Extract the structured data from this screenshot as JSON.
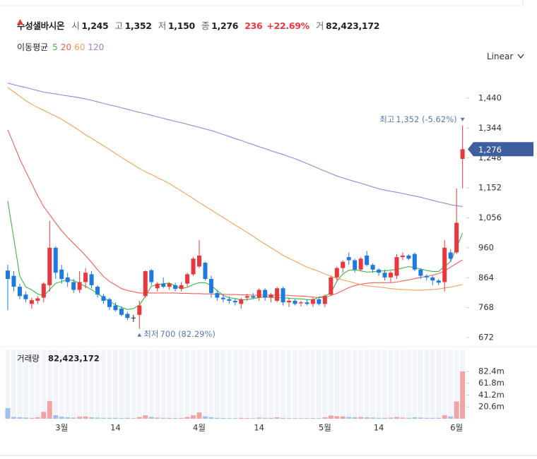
{
  "header": {
    "name": "수성샐바시온",
    "items": [
      {
        "label": "시",
        "value": "1,245"
      },
      {
        "label": "고",
        "value": "1,352"
      },
      {
        "label": "저",
        "value": "1,150"
      },
      {
        "label": "종",
        "value": "1,276"
      }
    ],
    "change": "236",
    "change_pct": "+22.69%",
    "volume_label": "거",
    "volume_value": "82,423,172",
    "ma_title": "이동평균",
    "scale": "Linear"
  },
  "chart_data": {
    "type": "candlestick",
    "categories": [
      null,
      null,
      null,
      null,
      null,
      null,
      null,
      null,
      null,
      "3월",
      null,
      null,
      null,
      null,
      null,
      null,
      null,
      null,
      "14",
      null,
      null,
      null,
      null,
      null,
      null,
      null,
      null,
      null,
      null,
      null,
      null,
      null,
      "4월",
      null,
      null,
      null,
      null,
      null,
      null,
      null,
      null,
      null,
      "14",
      null,
      null,
      null,
      null,
      null,
      null,
      null,
      null,
      null,
      null,
      "5월",
      null,
      null,
      null,
      null,
      null,
      null,
      null,
      null,
      "14",
      null,
      null,
      null,
      null,
      null,
      null,
      null,
      null,
      null,
      null,
      null,
      null,
      "6월",
      null
    ],
    "open": [
      887,
      870,
      835,
      810,
      780,
      790,
      800,
      840,
      960,
      890,
      865,
      850,
      825,
      850,
      875,
      835,
      805,
      795,
      775,
      765,
      748,
      736,
      745,
      805,
      888,
      830,
      845,
      835,
      840,
      828,
      845,
      875,
      900,
      912,
      860,
      815,
      800,
      795,
      790,
      780,
      800,
      805,
      800,
      825,
      800,
      790,
      830,
      785,
      790,
      782,
      785,
      780,
      795,
      780,
      810,
      865,
      895,
      930,
      920,
      890,
      935,
      905,
      890,
      880,
      865,
      870,
      930,
      935,
      940,
      890,
      870,
      865,
      855,
      850,
      945,
      945,
      1245
    ],
    "high": [
      905,
      885,
      845,
      820,
      800,
      805,
      850,
      1046,
      965,
      905,
      880,
      860,
      885,
      895,
      885,
      840,
      812,
      800,
      785,
      772,
      755,
      745,
      790,
      888,
      892,
      850,
      865,
      850,
      848,
      850,
      880,
      930,
      985,
      915,
      870,
      825,
      810,
      805,
      798,
      800,
      812,
      815,
      830,
      830,
      815,
      835,
      835,
      800,
      795,
      790,
      795,
      800,
      800,
      810,
      870,
      900,
      920,
      945,
      925,
      930,
      950,
      910,
      895,
      890,
      885,
      940,
      945,
      940,
      945,
      895,
      875,
      870,
      860,
      985,
      955,
      1150,
      1352
    ],
    "low": [
      760,
      820,
      795,
      785,
      765,
      780,
      785,
      820,
      860,
      845,
      835,
      815,
      815,
      830,
      830,
      800,
      780,
      760,
      755,
      740,
      728,
      722,
      700,
      800,
      840,
      820,
      830,
      825,
      820,
      820,
      835,
      870,
      895,
      855,
      800,
      790,
      785,
      780,
      775,
      765,
      790,
      795,
      790,
      790,
      785,
      785,
      775,
      770,
      775,
      772,
      775,
      770,
      775,
      770,
      805,
      855,
      880,
      905,
      880,
      885,
      900,
      880,
      870,
      855,
      850,
      860,
      920,
      920,
      885,
      860,
      855,
      840,
      840,
      820,
      915,
      940,
      1150
    ],
    "close": [
      860,
      835,
      805,
      795,
      792,
      798,
      845,
      960,
      880,
      860,
      850,
      825,
      850,
      880,
      840,
      810,
      790,
      770,
      760,
      745,
      735,
      736,
      775,
      885,
      850,
      845,
      835,
      845,
      828,
      840,
      875,
      925,
      935,
      860,
      815,
      800,
      795,
      790,
      785,
      795,
      805,
      800,
      825,
      800,
      810,
      830,
      785,
      790,
      780,
      785,
      780,
      795,
      780,
      805,
      865,
      895,
      915,
      920,
      890,
      925,
      905,
      890,
      880,
      865,
      880,
      930,
      935,
      925,
      890,
      870,
      865,
      855,
      848,
      960,
      925,
      1040,
      1276
    ],
    "up_color": "#e8383d",
    "down_color": "#1f7ae0",
    "flat_color": "#222222",
    "ma_series": [
      {
        "name": "5",
        "color": "#3cb44b",
        "values": [
          1110,
          990,
          870,
          835,
          825,
          812,
          806,
          826,
          846,
          852,
          858,
          855,
          845,
          836,
          826,
          813,
          800,
          788,
          777,
          769,
          762,
          765,
          776,
          805,
          837,
          841,
          845,
          847,
          838,
          829,
          833,
          842,
          848,
          848,
          839,
          823,
          807,
          800,
          797,
          793,
          794,
          797,
          800,
          803,
          801,
          800,
          800,
          798,
          797,
          796,
          794,
          793,
          802,
          805,
          815,
          853,
          876,
          888,
          889,
          886,
          882,
          883,
          885,
          886,
          888,
          891,
          895,
          900,
          896,
          892,
          887,
          884,
          884,
          900,
          916,
          960,
          1007
        ]
      },
      {
        "name": "20",
        "color": "#f0605a",
        "values": [
          1338,
          1292,
          1245,
          1205,
          1166,
          1127,
          1092,
          1066,
          1040,
          1015,
          993,
          974,
          955,
          935,
          913,
          890,
          868,
          852,
          841,
          829,
          823,
          819,
          815,
          815,
          815,
          815,
          815,
          815,
          815,
          814,
          814,
          813,
          813,
          812,
          812,
          811,
          811,
          810,
          810,
          809,
          809,
          808,
          808,
          808,
          808,
          808,
          808,
          807,
          806,
          805,
          804,
          802,
          800,
          800,
          807,
          814,
          823,
          832,
          839,
          843,
          846,
          848,
          848,
          848,
          848,
          850,
          854,
          857,
          861,
          865,
          868,
          872,
          877,
          886,
          898,
          910,
          921
        ]
      },
      {
        "name": "60",
        "color": "#f5a15a",
        "values": [
          1474,
          1460,
          1446,
          1432,
          1420,
          1410,
          1401,
          1391,
          1382,
          1372,
          1360,
          1348,
          1336,
          1322,
          1311,
          1299,
          1287,
          1275,
          1262,
          1250,
          1238,
          1226,
          1214,
          1204,
          1195,
          1185,
          1176,
          1166,
          1154,
          1142,
          1130,
          1118,
          1105,
          1093,
          1081,
          1069,
          1057,
          1045,
          1033,
          1021,
          1009,
          997,
          984,
          972,
          960,
          948,
          936,
          926,
          917,
          907,
          898,
          891,
          884,
          876,
          869,
          862,
          857,
          852,
          847,
          842,
          838,
          836,
          834,
          832,
          829,
          827,
          826,
          825,
          824,
          824,
          825,
          826,
          828,
          831,
          834,
          838,
          842
        ]
      },
      {
        "name": "120",
        "color": "#a67ee0",
        "values": [
          1488,
          1483,
          1478,
          1474,
          1469,
          1464,
          1459,
          1456,
          1453,
          1450,
          1447,
          1444,
          1441,
          1437,
          1433,
          1428,
          1423,
          1418,
          1414,
          1409,
          1404,
          1399,
          1394,
          1390,
          1385,
          1380,
          1375,
          1370,
          1365,
          1361,
          1356,
          1351,
          1346,
          1341,
          1336,
          1330,
          1323,
          1317,
          1310,
          1304,
          1297,
          1291,
          1284,
          1278,
          1271,
          1265,
          1259,
          1252,
          1246,
          1238,
          1230,
          1222,
          1214,
          1206,
          1198,
          1190,
          1184,
          1178,
          1172,
          1167,
          1161,
          1155,
          1149,
          1145,
          1141,
          1138,
          1134,
          1130,
          1126,
          1122,
          1117,
          1112,
          1107,
          1103,
          1098,
          1095,
          1092
        ]
      }
    ],
    "ylim": [
      645,
      1528
    ],
    "yticks": [
      672,
      768,
      864,
      960,
      {
        "value": 1056,
        "label": "1,056"
      },
      {
        "value": 1152,
        "label": "1,152"
      },
      {
        "value": 1248,
        "label": "1,248"
      },
      {
        "value": 1344,
        "label": "1,344"
      },
      {
        "value": 1440,
        "label": "1,440"
      }
    ],
    "last_price": {
      "value": 1276,
      "label": "1,276"
    },
    "high_label": {
      "prefix": "최고",
      "text": "1,352 (-5.62%)"
    },
    "low_label": {
      "prefix": "최저",
      "text": "700 (82.29%)"
    },
    "volume": {
      "title": "거래량",
      "total": "82,423,172",
      "up_color": "#f2a3a3",
      "down_color": "#9dc1ef",
      "values": [
        18500000,
        3000000,
        2500000,
        2000000,
        1500000,
        2500000,
        12000000,
        31000000,
        6000000,
        3500000,
        2500000,
        2000000,
        3500000,
        4000000,
        2500000,
        2000000,
        1500000,
        1500000,
        1500000,
        1200000,
        1500000,
        1000000,
        3000000,
        6000000,
        3000000,
        2000000,
        1500000,
        1500000,
        1200000,
        1500000,
        3000000,
        6000000,
        11000000,
        4000000,
        2500000,
        1500000,
        1200000,
        1000000,
        1000000,
        1500000,
        1200000,
        1000000,
        2000000,
        1500000,
        1500000,
        2500000,
        1500000,
        1000000,
        1000000,
        1000000,
        1000000,
        1200000,
        1000000,
        2500000,
        5500000,
        4500000,
        4000000,
        3000000,
        2500000,
        3000000,
        2500000,
        2000000,
        1500000,
        1500000,
        2000000,
        3000000,
        2000000,
        1500000,
        2500000,
        2000000,
        1500000,
        1500000,
        1500000,
        6000000,
        4000000,
        30000000,
        82423172
      ],
      "ylim": [
        0,
        120500000
      ],
      "yticks": [
        {
          "value": 20600000,
          "label": "20.6m"
        },
        {
          "value": 41200000,
          "label": "41.2m"
        },
        {
          "value": 61800000,
          "label": "61.8m"
        },
        {
          "value": 82400000,
          "label": "82.4m"
        }
      ]
    }
  }
}
